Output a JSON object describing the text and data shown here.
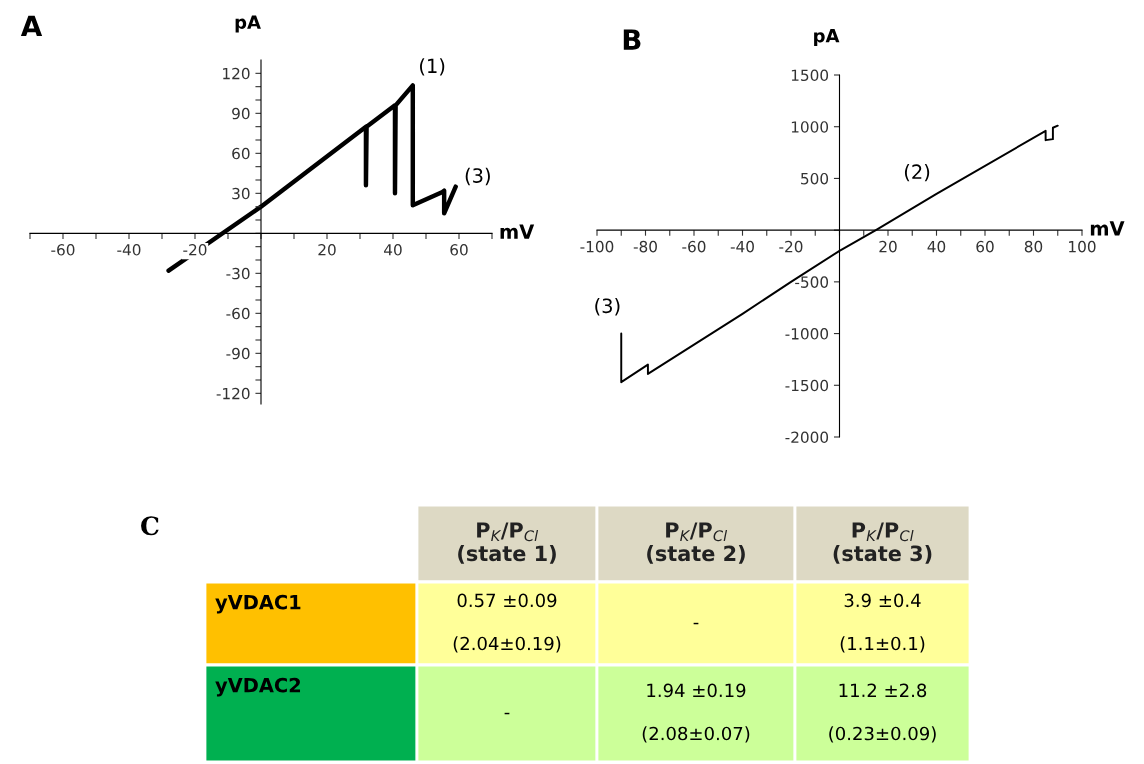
{
  "chart_data": [
    {
      "type": "line",
      "title": "A",
      "xlabel": "mV",
      "ylabel": "pA",
      "xlim": [
        -70,
        70
      ],
      "ylim": [
        -128,
        130
      ],
      "xticks": [
        {
          "value": -70,
          "label": null
        },
        -60,
        {
          "value": -50,
          "label": null
        },
        -40,
        {
          "value": -30,
          "label": null
        },
        -20,
        {
          "value": -10,
          "label": null
        },
        {
          "value": 0,
          "label": null
        },
        {
          "value": 10,
          "label": null
        },
        20,
        {
          "value": 30,
          "label": null
        },
        40,
        {
          "value": 50,
          "label": null
        },
        60,
        {
          "value": 70,
          "label": null
        }
      ],
      "yticks": [
        -120,
        {
          "value": -110,
          "label": null
        },
        {
          "value": -100,
          "label": null
        },
        -90,
        {
          "value": -80,
          "label": null
        },
        {
          "value": -70,
          "label": null
        },
        -60,
        {
          "value": -50,
          "label": null
        },
        {
          "value": -40,
          "label": null
        },
        -30,
        {
          "value": -20,
          "label": null
        },
        {
          "value": -10,
          "label": null
        },
        {
          "value": 0,
          "label": null
        },
        {
          "value": 10,
          "label": null
        },
        {
          "value": 20,
          "label": null
        },
        30,
        {
          "value": 40,
          "label": null
        },
        {
          "value": 50,
          "label": null
        },
        60,
        {
          "value": 70,
          "label": null
        },
        {
          "value": 80,
          "label": null
        },
        90,
        {
          "value": 100,
          "label": null
        },
        {
          "value": 110,
          "label": null
        },
        120
      ],
      "series": [
        {
          "color": "#000000",
          "x": [
            -28,
            0,
            31.8,
            31.8,
            32,
            40.6,
            40.6,
            40.8,
            46,
            46,
            55,
            55.5,
            55.5,
            59
          ],
          "values": [
            -28,
            20,
            80,
            36,
            80,
            96,
            30,
            96,
            111,
            21,
            31,
            32,
            15,
            35
          ]
        }
      ],
      "annotations": [
        {
          "text": "(1)",
          "x": 46,
          "y": 111
        },
        {
          "text": "(3)",
          "x": 59,
          "y": 35
        }
      ]
    },
    {
      "type": "line",
      "title": "B",
      "xlabel": "mV",
      "ylabel": "pA",
      "xlim": [
        -100,
        100
      ],
      "ylim": [
        -2000,
        1500
      ],
      "xticks": [
        -100,
        {
          "value": -90,
          "label": null
        },
        -80,
        {
          "value": -70,
          "label": null
        },
        -60,
        {
          "value": -50,
          "label": null
        },
        -40,
        {
          "value": -30,
          "label": null
        },
        -20,
        {
          "value": -10,
          "label": null
        },
        {
          "value": 0,
          "label": null
        },
        {
          "value": 10,
          "label": null
        },
        20,
        {
          "value": 30,
          "label": null
        },
        40,
        {
          "value": 50,
          "label": null
        },
        60,
        {
          "value": 70,
          "label": null
        },
        80,
        {
          "value": 90,
          "label": null
        },
        100
      ],
      "yticks": [
        -2000,
        -1500,
        -1000,
        -500,
        {
          "value": 0,
          "label": null
        },
        500,
        1000,
        1500
      ],
      "series": [
        {
          "color": "#000000",
          "x": [
            -90,
            -90,
            -79,
            -79,
            -40,
            -20,
            0,
            15,
            40,
            85,
            85,
            88,
            88,
            90
          ],
          "values": [
            -1000,
            -1470,
            -1300,
            -1390,
            -810,
            -500,
            -200,
            0,
            350,
            960,
            870,
            880,
            990,
            1010
          ]
        }
      ],
      "annotations": [
        {
          "text": "(2)",
          "x": 40,
          "y": 350
        },
        {
          "text": "(3)",
          "x": -90,
          "y": -1000
        }
      ]
    },
    {
      "type": "other",
      "title": "C",
      "annotations": [
        "P$_{K}$/P$_{Cl}$\n(state 1)",
        "P$_{K}$/P$_{Cl}$\n(state 2)",
        "P$_{K}$/P$_{Cl}$\n(state 3)",
        "yVDAC1",
        "0.57 ±0.09\n\n(2.04±0.19)",
        "-",
        "3.9 ±0.4\n\n(1.1±0.1)",
        "yVDAC2",
        "-",
        "1.94 ±0.19\n\n(2.08±0.07)",
        "11.2 ±2.8\n\n(0.23±0.09)"
      ]
    }
  ]
}
